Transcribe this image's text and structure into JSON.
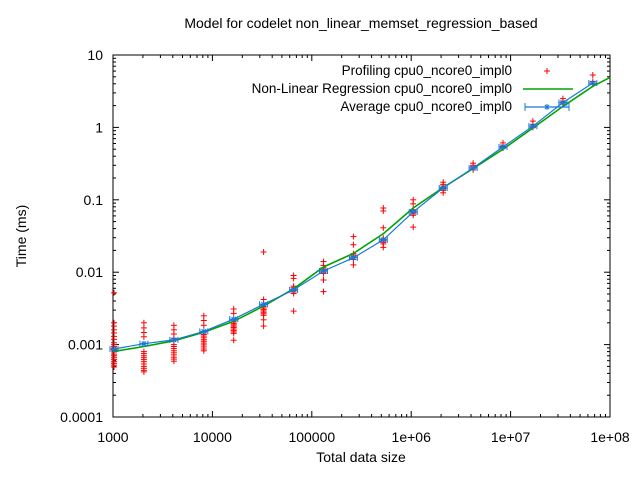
{
  "chart_data": {
    "type": "scatter",
    "title": "Model for codelet non_linear_memset_regression_based",
    "xlabel": "Total data size",
    "ylabel": "Time (ms)",
    "xlog": true,
    "ylog": true,
    "xlim": [
      1000,
      100000000
    ],
    "ylim": [
      0.0001,
      10
    ],
    "grid": false,
    "legend_position": "top-right-inside",
    "x_ticks": [
      "1000",
      "10000",
      "100000",
      "1e+06",
      "1e+07",
      "1e+08"
    ],
    "y_ticks": [
      "10",
      "1",
      "0.1",
      "0.01",
      "0.001",
      "0.0001"
    ],
    "colors": {
      "profiling": "#ff0000",
      "regression": "#00a400",
      "average": "#1778d8",
      "axis": "#000000"
    },
    "series": [
      {
        "name": "Profiling cpu0_ncore0_impl0",
        "type": "scatter",
        "marker": "plus",
        "color": "#ff0000",
        "clusters": [
          {
            "x": 1024,
            "values": [
              0.0052,
              0.002,
              0.0018,
              0.0016,
              0.00145,
              0.0013,
              0.00118,
              0.00106,
              0.001,
              0.00094,
              0.00089,
              0.00084,
              0.00079,
              0.00074,
              0.0007,
              0.00066,
              0.00062,
              0.00058,
              0.00055,
              0.00052,
              0.00049
            ]
          },
          {
            "x": 2048,
            "values": [
              0.002,
              0.0017,
              0.00147,
              0.00128,
              0.0008,
              0.00075,
              0.0007,
              0.00066,
              0.00062,
              0.00058,
              0.00054,
              0.0005,
              0.00047,
              0.00044,
              0.00042
            ]
          },
          {
            "x": 4096,
            "values": [
              0.00185,
              0.0016,
              0.0014,
              0.00122,
              0.001,
              0.00094,
              0.00088,
              0.00082,
              0.00077,
              0.00072,
              0.00067,
              0.00063,
              0.00059
            ]
          },
          {
            "x": 8192,
            "values": [
              0.0025,
              0.00215,
              0.00185,
              0.00145,
              0.00138,
              0.00131,
              0.00124,
              0.00117,
              0.00111,
              0.00105,
              0.00099,
              0.00093,
              0.00087,
              0.00082
            ]
          },
          {
            "x": 16384,
            "values": [
              0.0031,
              0.0027,
              0.00205,
              0.00196,
              0.00188,
              0.0018,
              0.00172,
              0.00164,
              0.00157,
              0.0015,
              0.00143,
              0.00115
            ]
          },
          {
            "x": 32768,
            "values": [
              0.019,
              0.0042,
              0.00335,
              0.0032,
              0.00306,
              0.00292,
              0.00279,
              0.00266,
              0.00254,
              0.0022,
              0.0018
            ]
          },
          {
            "x": 65536,
            "values": [
              0.009,
              0.0082,
              0.0064,
              0.0061,
              0.00583,
              0.00557,
              0.00532,
              0.00508,
              0.0029
            ]
          },
          {
            "x": 131072,
            "values": [
              0.014,
              0.0124,
              0.0115,
              0.011,
              0.0105,
              0.01,
              0.0096,
              0.0078,
              0.0054
            ]
          },
          {
            "x": 262144,
            "values": [
              0.031,
              0.024,
              0.018,
              0.0172,
              0.0164,
              0.0157,
              0.015,
              0.0126
            ]
          },
          {
            "x": 524288,
            "values": [
              0.077,
              0.07,
              0.041,
              0.0295,
              0.0282,
              0.027,
              0.0258,
              0.0246,
              0.022
            ]
          },
          {
            "x": 1048576,
            "values": [
              0.1,
              0.088,
              0.073,
              0.07,
              0.067,
              0.064,
              0.061,
              0.042
            ]
          },
          {
            "x": 2097152,
            "values": [
              0.175,
              0.163,
              0.155,
              0.148,
              0.141,
              0.135,
              0.125
            ]
          },
          {
            "x": 4194304,
            "values": [
              0.32,
              0.3,
              0.286,
              0.273,
              0.26
            ]
          },
          {
            "x": 8388608,
            "values": [
              0.61,
              0.57,
              0.545,
              0.52
            ]
          },
          {
            "x": 16777216,
            "values": [
              1.22,
              1.1,
              1.05,
              1.0
            ]
          },
          {
            "x": 33554432,
            "values": [
              2.5,
              2.3,
              2.2,
              2.1
            ]
          },
          {
            "x": 67108864,
            "values": [
              5.3,
              4.3,
              4.1,
              3.95
            ]
          }
        ]
      },
      {
        "name": "Non-Linear Regression cpu0_ncore0_impl0",
        "type": "line",
        "marker": "none",
        "color": "#00a400",
        "points": [
          [
            1000,
            0.0008
          ],
          [
            2048,
            0.00094
          ],
          [
            4096,
            0.00113
          ],
          [
            8192,
            0.00148
          ],
          [
            16384,
            0.0021
          ],
          [
            32768,
            0.0034
          ],
          [
            65536,
            0.0059
          ],
          [
            131072,
            0.0118
          ],
          [
            262144,
            0.0182
          ],
          [
            524288,
            0.034
          ],
          [
            1048576,
            0.077
          ],
          [
            2097152,
            0.148
          ],
          [
            4194304,
            0.27
          ],
          [
            8388608,
            0.5
          ],
          [
            16777216,
            0.98
          ],
          [
            33554432,
            1.95
          ],
          [
            67108864,
            3.7
          ],
          [
            100000000,
            4.9
          ]
        ]
      },
      {
        "name": "Average cpu0_ncore0_impl0",
        "type": "line",
        "marker": "star-with-xerrorbar",
        "color": "#1778d8",
        "points": [
          [
            1024,
            0.00087
          ],
          [
            2048,
            0.00103
          ],
          [
            4096,
            0.00116
          ],
          [
            8192,
            0.00152
          ],
          [
            16384,
            0.00225
          ],
          [
            32768,
            0.0036
          ],
          [
            65536,
            0.0057
          ],
          [
            131072,
            0.0104
          ],
          [
            262144,
            0.0158
          ],
          [
            524288,
            0.028
          ],
          [
            1048576,
            0.068
          ],
          [
            2097152,
            0.146
          ],
          [
            4194304,
            0.275
          ],
          [
            8388608,
            0.537
          ],
          [
            16777216,
            1.04
          ],
          [
            33554432,
            2.2
          ],
          [
            67108864,
            4.1
          ]
        ]
      }
    ]
  }
}
